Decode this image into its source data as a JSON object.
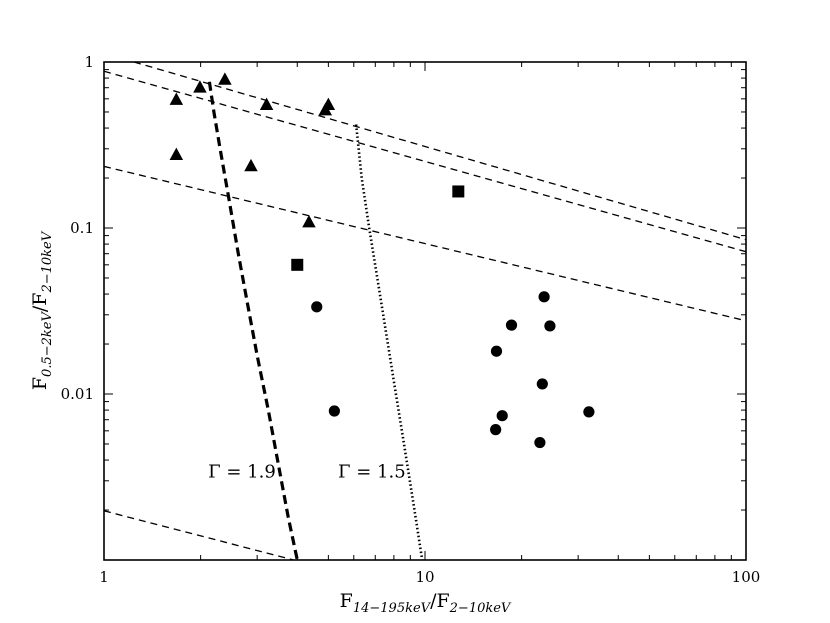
{
  "chart_data": {
    "type": "scatter",
    "title": "",
    "xlabel": {
      "base": "F",
      "sub1": "14−195keV",
      "mid": "/F",
      "sub2": "2−10keV"
    },
    "ylabel": {
      "base": "F",
      "sub1": "0.5−2keV",
      "mid": "/F",
      "sub2": "2−10keV"
    },
    "x_scale": "log",
    "y_scale": "log",
    "xlim": [
      1,
      100
    ],
    "ylim": [
      0.001,
      1
    ],
    "x_ticks": [
      {
        "value": 1,
        "label": "1"
      },
      {
        "value": 10,
        "label": "10"
      },
      {
        "value": 100,
        "label": "100"
      }
    ],
    "y_ticks": [
      {
        "value": 1,
        "label": "1"
      },
      {
        "value": 0.1,
        "label": "0.1"
      },
      {
        "value": 0.01,
        "label": "0.01"
      }
    ],
    "grid": false,
    "legend": "none",
    "series": [
      {
        "marker": "triangle",
        "color": "#000000",
        "points": [
          [
            1.68,
            0.59
          ],
          [
            1.99,
            0.7
          ],
          [
            2.38,
            0.78
          ],
          [
            3.21,
            0.55
          ],
          [
            4.89,
            0.51
          ],
          [
            5.0,
            0.55
          ],
          [
            1.68,
            0.275
          ],
          [
            2.87,
            0.235
          ],
          [
            4.35,
            0.108
          ]
        ]
      },
      {
        "marker": "square",
        "color": "#000000",
        "points": [
          [
            12.7,
            0.166
          ],
          [
            4.0,
            0.06
          ]
        ]
      },
      {
        "marker": "circle",
        "color": "#000000",
        "points": [
          [
            4.6,
            0.0335
          ],
          [
            5.22,
            0.0079
          ],
          [
            23.5,
            0.0385
          ],
          [
            18.6,
            0.026
          ],
          [
            24.5,
            0.0257
          ],
          [
            16.7,
            0.0181
          ],
          [
            23.2,
            0.0115
          ],
          [
            17.4,
            0.0074
          ],
          [
            16.6,
            0.0061
          ],
          [
            22.8,
            0.0051
          ],
          [
            32.4,
            0.0078
          ]
        ]
      }
    ],
    "lines": [
      {
        "style": "dashed-thin",
        "points": [
          [
            1.24,
            1.0
          ],
          [
            100,
            0.085
          ]
        ]
      },
      {
        "style": "dashed-thin",
        "points": [
          [
            1.0,
            0.88
          ],
          [
            100,
            0.072
          ]
        ]
      },
      {
        "style": "dashed-thin",
        "points": [
          [
            1.0,
            0.235
          ],
          [
            100,
            0.0276
          ]
        ]
      },
      {
        "style": "dashed-thin",
        "points": [
          [
            1.0,
            0.00198
          ],
          [
            3.9,
            0.001
          ]
        ]
      },
      {
        "style": "dashed-thick",
        "points": [
          [
            2.13,
            0.76
          ],
          [
            2.2,
            0.5
          ],
          [
            2.3,
            0.3
          ],
          [
            2.45,
            0.15
          ],
          [
            2.62,
            0.07
          ],
          [
            2.8,
            0.035
          ],
          [
            3.0,
            0.017
          ],
          [
            3.25,
            0.008
          ],
          [
            3.5,
            0.0037
          ],
          [
            3.75,
            0.0018
          ],
          [
            4.0,
            0.001
          ]
        ]
      },
      {
        "style": "dotted",
        "points": [
          [
            6.1,
            0.42
          ],
          [
            6.35,
            0.2
          ],
          [
            6.7,
            0.1
          ],
          [
            7.1,
            0.05
          ],
          [
            7.55,
            0.024
          ],
          [
            8.05,
            0.011
          ],
          [
            8.6,
            0.005
          ],
          [
            9.2,
            0.0022
          ],
          [
            9.8,
            0.001
          ]
        ]
      }
    ],
    "annotations": [
      {
        "text": "Γ = 1.9",
        "x": 2.69,
        "y": 0.00315
      },
      {
        "text": "Γ = 1.5",
        "x": 6.83,
        "y": 0.00315
      }
    ]
  }
}
